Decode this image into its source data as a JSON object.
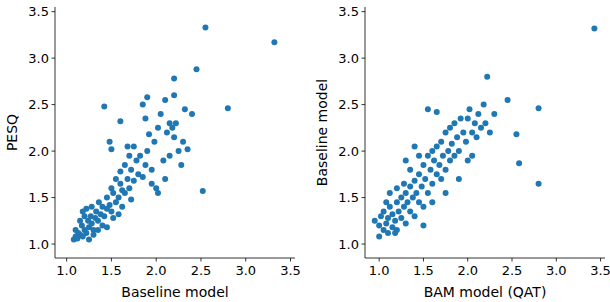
{
  "chart_data": [
    {
      "type": "scatter",
      "x_label": "Baseline model",
      "y_label": "PESQ",
      "color": "#1f77b4",
      "marker": "circle",
      "xlim": [
        0.87,
        3.55
      ],
      "ylim": [
        0.85,
        3.55
      ],
      "xticks": [
        {
          "value": 1,
          "label": "1.0"
        },
        1.5,
        {
          "value": 2,
          "label": "2.0"
        },
        2.5,
        {
          "value": 3,
          "label": "3.0"
        },
        3.5
      ],
      "yticks": [
        {
          "value": 1,
          "label": "1.0"
        },
        1.5,
        {
          "value": 2,
          "label": "2.0"
        },
        2.5,
        {
          "value": 3,
          "label": "3.0"
        },
        3.5
      ],
      "x": [
        1.08,
        1.1,
        1.12,
        1.15,
        1.13,
        1.18,
        1.2,
        1.22,
        1.17,
        1.25,
        1.24,
        1.28,
        1.3,
        1.27,
        1.32,
        1.35,
        1.33,
        1.38,
        1.4,
        1.36,
        1.42,
        1.45,
        1.2,
        1.15,
        1.25,
        1.3,
        1.22,
        1.4,
        1.45,
        1.48,
        1.5,
        1.52,
        1.55,
        1.5,
        1.58,
        1.6,
        1.62,
        1.65,
        1.55,
        1.6,
        1.68,
        1.7,
        1.72,
        1.75,
        1.65,
        1.78,
        1.8,
        1.82,
        1.85,
        1.88,
        1.9,
        1.75,
        1.48,
        1.5,
        1.42,
        1.6,
        1.68,
        1.85,
        1.88,
        1.9,
        1.95,
        1.98,
        2.0,
        2.02,
        2.05,
        2.08,
        2.1,
        2.12,
        2.15,
        2.18,
        2.2,
        2.22,
        2.2,
        2.25,
        2.28,
        2.3,
        2.32,
        2.2,
        2.1,
        2.4,
        2.45,
        2.52,
        2.55,
        2.35,
        2.8,
        3.32,
        1.95,
        1.72,
        1.58,
        1.45,
        1.35,
        1.28,
        1.18,
        1.1,
        2.02,
        1.92,
        2.15,
        1.7,
        1.62,
        1.52
      ],
      "values": [
        1.05,
        1.08,
        1.06,
        1.1,
        1.12,
        1.08,
        1.15,
        1.12,
        1.2,
        1.18,
        1.25,
        1.22,
        1.15,
        1.3,
        1.28,
        1.25,
        1.35,
        1.32,
        1.4,
        1.45,
        1.3,
        1.38,
        1.3,
        1.25,
        1.05,
        1.1,
        1.38,
        1.2,
        1.5,
        1.42,
        1.35,
        1.55,
        1.45,
        1.6,
        1.5,
        1.65,
        1.4,
        1.55,
        1.7,
        1.78,
        1.7,
        1.6,
        1.8,
        1.68,
        1.85,
        1.9,
        1.75,
        1.95,
        1.72,
        1.85,
        2.0,
        2.05,
        2.1,
        2.02,
        2.48,
        2.32,
        2.05,
        2.5,
        2.35,
        2.58,
        1.8,
        2.1,
        1.6,
        1.55,
        2.4,
        1.9,
        1.7,
        2.2,
        2.3,
        2.25,
        2.15,
        2.3,
        2.6,
        2.0,
        1.85,
        2.1,
        2.45,
        2.78,
        2.55,
        2.4,
        2.88,
        1.57,
        3.33,
        2.02,
        2.46,
        3.17,
        1.65,
        1.48,
        1.32,
        1.18,
        1.15,
        1.4,
        1.35,
        1.15,
        2.25,
        2.18,
        1.95,
        1.95,
        1.58,
        1.28
      ]
    },
    {
      "type": "scatter",
      "x_label": "BAM model (QAT)",
      "y_label": "Baseline model",
      "color": "#1f77b4",
      "marker": "circle",
      "xlim": [
        0.84,
        3.55
      ],
      "ylim": [
        0.85,
        3.55
      ],
      "xticks": [
        {
          "value": 1,
          "label": "1.0"
        },
        1.5,
        {
          "value": 2,
          "label": "2.0"
        },
        2.5,
        {
          "value": 3,
          "label": "3.0"
        },
        3.5
      ],
      "yticks": [
        {
          "value": 1,
          "label": "1.0"
        },
        1.5,
        {
          "value": 2,
          "label": "2.0"
        },
        2.5,
        {
          "value": 3,
          "label": "3.0"
        },
        3.5
      ],
      "x": [
        0.95,
        1.0,
        1.02,
        1.05,
        1.05,
        1.08,
        1.1,
        1.1,
        1.12,
        1.15,
        1.15,
        1.18,
        1.2,
        1.2,
        1.22,
        1.25,
        1.25,
        1.28,
        1.3,
        1.3,
        1.32,
        1.35,
        1.35,
        1.38,
        1.4,
        1.4,
        1.42,
        1.45,
        1.45,
        1.48,
        1.5,
        1.5,
        1.52,
        1.55,
        1.55,
        1.58,
        1.6,
        1.6,
        1.62,
        1.65,
        1.65,
        1.68,
        1.7,
        1.7,
        1.72,
        1.75,
        1.75,
        1.78,
        1.8,
        1.8,
        1.82,
        1.85,
        1.85,
        1.88,
        1.9,
        1.92,
        1.95,
        1.98,
        2.0,
        2.0,
        2.02,
        2.05,
        2.08,
        2.1,
        2.12,
        2.15,
        2.18,
        2.2,
        2.22,
        2.25,
        2.3,
        2.45,
        2.55,
        2.58,
        2.8,
        2.8,
        3.43,
        1.55,
        1.65,
        1.3,
        1.2,
        1.12,
        1.4,
        1.5,
        1.6,
        1.75,
        1.9,
        1.0,
        1.08,
        1.18,
        1.28,
        1.45,
        1.35,
        2.05
      ],
      "values": [
        1.25,
        1.2,
        1.3,
        1.15,
        1.35,
        1.22,
        1.28,
        1.12,
        1.4,
        1.18,
        1.32,
        1.25,
        1.45,
        1.15,
        1.35,
        1.28,
        1.5,
        1.4,
        1.22,
        1.55,
        1.45,
        1.35,
        1.62,
        1.5,
        1.3,
        1.68,
        1.55,
        1.45,
        1.75,
        1.62,
        1.4,
        1.85,
        1.7,
        1.55,
        1.95,
        1.8,
        1.65,
        2.0,
        1.9,
        1.75,
        2.05,
        1.85,
        1.7,
        2.1,
        1.95,
        1.8,
        2.2,
        2.0,
        1.9,
        2.25,
        2.08,
        1.95,
        2.3,
        2.15,
        2.0,
        2.35,
        2.2,
        2.1,
        2.35,
        1.9,
        2.45,
        2.2,
        2.3,
        2.15,
        2.4,
        2.25,
        2.5,
        2.3,
        2.8,
        2.2,
        2.4,
        2.55,
        2.18,
        1.87,
        2.46,
        1.65,
        3.32,
        2.45,
        2.42,
        1.9,
        1.6,
        1.55,
        2.05,
        1.2,
        1.45,
        1.55,
        1.7,
        1.08,
        1.45,
        1.12,
        1.65,
        1.95,
        1.8,
        1.95
      ]
    }
  ]
}
